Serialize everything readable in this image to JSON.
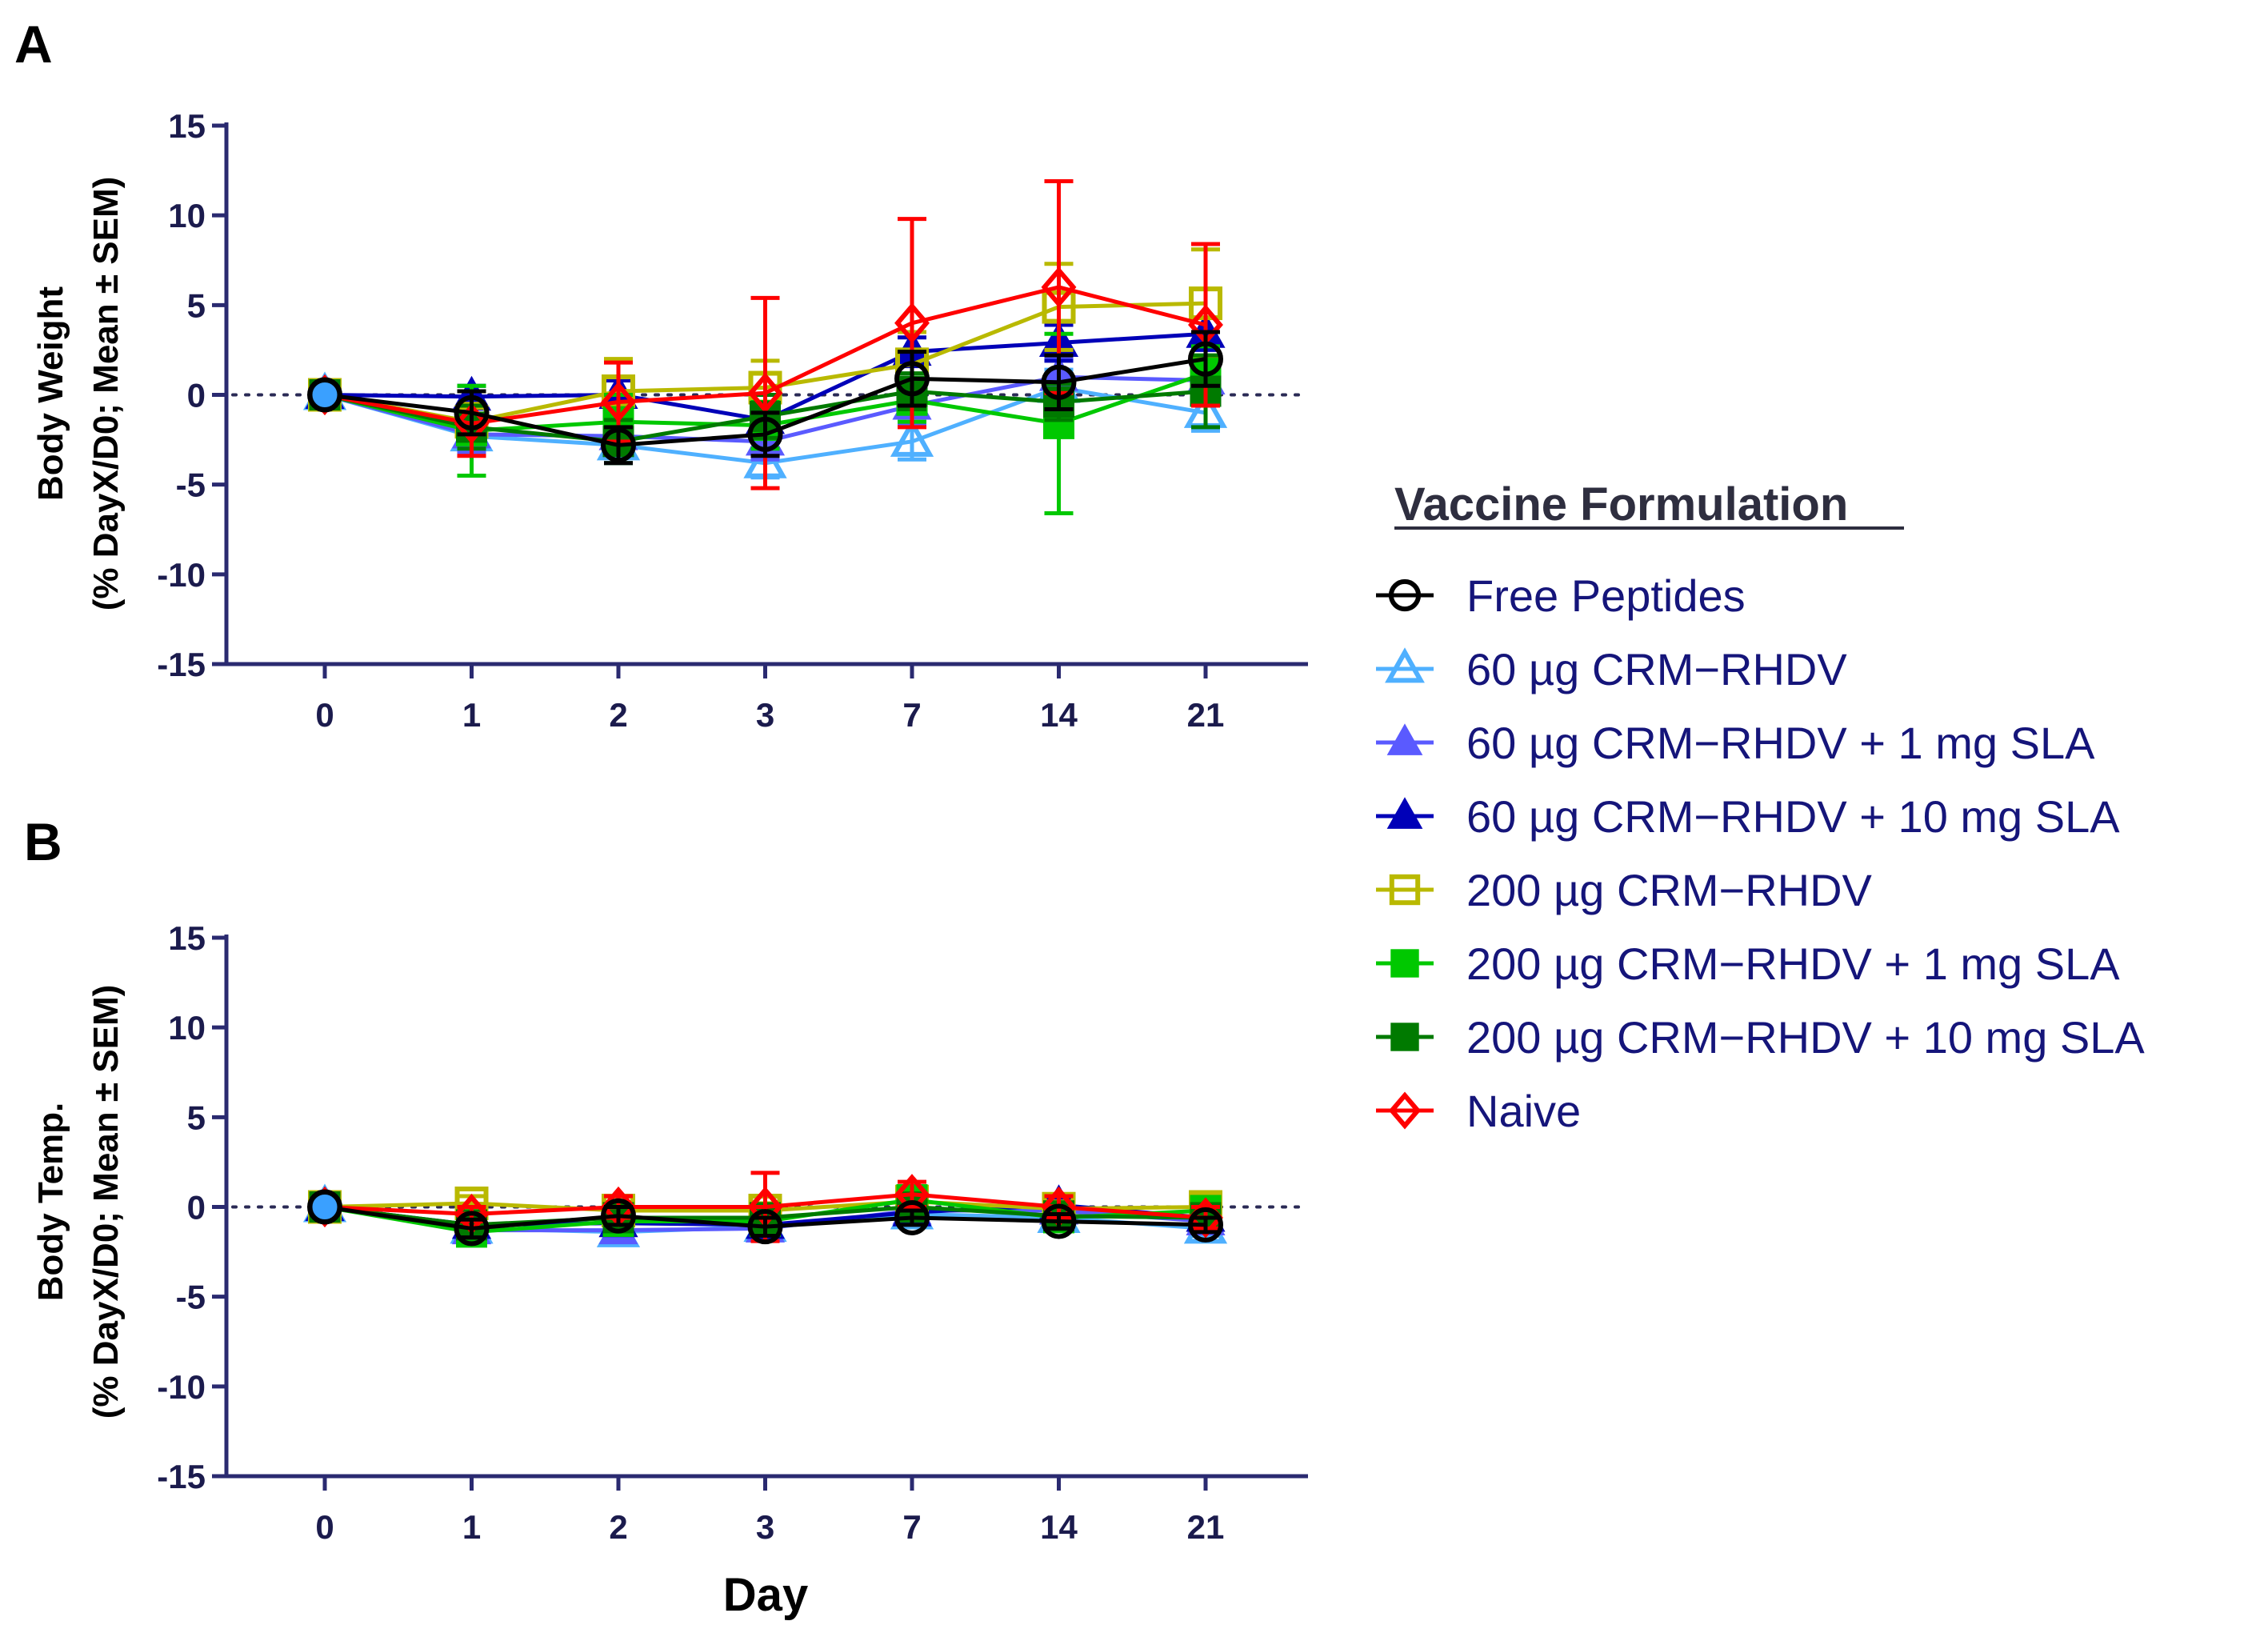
{
  "panels": {
    "A": {
      "letter": "A"
    },
    "B": {
      "letter": "B"
    }
  },
  "legend": {
    "title": "Vaccine Formulation"
  },
  "chart_data": [
    {
      "type": "line",
      "panel": "A",
      "ylabel_line1": "Body Weight",
      "ylabel_line2": "(% DayX/D0; Mean ± SEM)",
      "xlabel": "",
      "categories": [
        "0",
        "1",
        "2",
        "3",
        "7",
        "14",
        "21"
      ],
      "ylim": [
        -15,
        15
      ],
      "yticks": [
        15,
        10,
        5,
        0,
        -5,
        -10,
        -15
      ],
      "reference_line": 0,
      "series": [
        {
          "name": "Free Peptides",
          "color": "#000000",
          "marker": "circle-open",
          "values": [
            0,
            -1.0,
            -2.8,
            -2.2,
            0.9,
            0.7,
            2.0
          ],
          "err": [
            0,
            1.2,
            1.0,
            1.2,
            1.5,
            1.5,
            1.5
          ]
        },
        {
          "name": "60 µg CRM−RHDV",
          "color": "#4fb0ff",
          "marker": "triangle-open",
          "values": [
            0,
            -2.3,
            -2.8,
            -3.8,
            -2.6,
            0.4,
            -1.0
          ],
          "err": [
            0,
            1.0,
            1.0,
            0.8,
            1.0,
            1.0,
            1.0
          ]
        },
        {
          "name": "60 µg CRM−RHDV + 1 mg SLA",
          "color": "#5a5aff",
          "marker": "triangle-filled",
          "values": [
            0,
            -2.2,
            -2.3,
            -2.6,
            -0.6,
            1.0,
            0.8
          ],
          "err": [
            0,
            1.0,
            1.0,
            1.0,
            1.0,
            1.0,
            1.0
          ]
        },
        {
          "name": "60 µg CRM−RHDV + 10 mg SLA",
          "color": "#0000b8",
          "marker": "triangle-filled",
          "values": [
            0,
            -0.1,
            0.0,
            -1.4,
            2.4,
            2.9,
            3.4
          ],
          "err": [
            0,
            0.6,
            0.8,
            1.0,
            0.8,
            1.0,
            0.9
          ]
        },
        {
          "name": "200 µg CRM−RHDV",
          "color": "#b9b900",
          "marker": "square-open",
          "values": [
            0,
            -1.5,
            0.2,
            0.4,
            1.7,
            4.9,
            5.1
          ],
          "err": [
            0,
            1.0,
            1.8,
            1.5,
            1.8,
            2.4,
            3.0
          ]
        },
        {
          "name": "200 µg CRM−RHDV + 1 mg SLA",
          "color": "#00c800",
          "marker": "square-filled",
          "values": [
            0,
            -2.0,
            -1.5,
            -1.7,
            -0.3,
            -1.6,
            1.2
          ],
          "err": [
            0,
            2.5,
            1.5,
            1.3,
            1.2,
            5.0,
            1.5
          ]
        },
        {
          "name": "200 µg CRM−RHDV + 10 mg SLA",
          "color": "#007a00",
          "marker": "square-filled",
          "values": [
            0,
            -1.8,
            -2.6,
            -1.2,
            0.2,
            -0.4,
            0.2
          ],
          "err": [
            0,
            1.2,
            1.2,
            1.2,
            1.0,
            1.0,
            2.0
          ]
        },
        {
          "name": "Naive",
          "color": "#ff0000",
          "marker": "diamond-open",
          "values": [
            0,
            -1.6,
            -0.4,
            0.1,
            4.0,
            6.0,
            3.9
          ],
          "err": [
            0,
            1.8,
            2.2,
            5.3,
            5.8,
            5.9,
            4.5
          ]
        }
      ]
    },
    {
      "type": "line",
      "panel": "B",
      "ylabel_line1": "Body Temp.",
      "ylabel_line2": "(% DayX/D0; Mean ± SEM)",
      "xlabel": "Day",
      "categories": [
        "0",
        "1",
        "2",
        "3",
        "7",
        "14",
        "21"
      ],
      "ylim": [
        -15,
        15
      ],
      "yticks": [
        15,
        10,
        5,
        0,
        -5,
        -10,
        -15
      ],
      "reference_line": 0,
      "series": [
        {
          "name": "Free Peptides",
          "color": "#000000",
          "marker": "circle-open",
          "values": [
            0,
            -1.2,
            -0.5,
            -1.1,
            -0.6,
            -0.8,
            -1.0
          ],
          "err": [
            0,
            0.5,
            0.5,
            0.5,
            0.4,
            0.4,
            0.4
          ]
        },
        {
          "name": "60 µg CRM−RHDV",
          "color": "#4fb0ff",
          "marker": "triangle-open",
          "values": [
            0,
            -1.2,
            -1.4,
            -1.1,
            -0.4,
            -0.6,
            -1.2
          ],
          "err": [
            0,
            0.4,
            0.4,
            0.4,
            0.4,
            0.4,
            0.4
          ]
        },
        {
          "name": "60 µg CRM−RHDV + 1 mg SLA",
          "color": "#5a5aff",
          "marker": "triangle-filled",
          "values": [
            0,
            -1.3,
            -1.3,
            -1.2,
            -0.2,
            -0.2,
            -0.8
          ],
          "err": [
            0,
            0.4,
            0.4,
            0.4,
            0.4,
            0.4,
            0.4
          ]
        },
        {
          "name": "60 µg CRM−RHDV + 10 mg SLA",
          "color": "#0000b8",
          "marker": "triangle-filled",
          "values": [
            0,
            -1.0,
            -0.9,
            -1.0,
            -0.3,
            0.1,
            -0.6
          ],
          "err": [
            0,
            0.4,
            0.4,
            0.4,
            0.4,
            0.4,
            0.4
          ]
        },
        {
          "name": "200 µg CRM−RHDV",
          "color": "#b9b900",
          "marker": "square-open",
          "values": [
            0,
            0.2,
            -0.2,
            -0.2,
            0.3,
            -0.1,
            0.0
          ],
          "err": [
            0,
            0.4,
            0.4,
            0.4,
            0.4,
            0.4,
            0.4
          ]
        },
        {
          "name": "200 µg CRM−RHDV + 1 mg SLA",
          "color": "#00c800",
          "marker": "square-filled",
          "values": [
            0,
            -1.4,
            -0.8,
            -0.8,
            0.4,
            -0.6,
            -0.2
          ],
          "err": [
            0,
            0.5,
            0.4,
            0.4,
            0.4,
            0.4,
            0.4
          ]
        },
        {
          "name": "200 µg CRM−RHDV + 10 mg SLA",
          "color": "#007a00",
          "marker": "square-filled",
          "values": [
            0,
            -1.0,
            -0.6,
            -0.6,
            0.0,
            -0.5,
            -0.6
          ],
          "err": [
            0,
            0.4,
            0.4,
            0.4,
            0.4,
            0.4,
            0.4
          ]
        },
        {
          "name": "Naive",
          "color": "#ff0000",
          "marker": "diamond-open",
          "values": [
            0,
            -0.4,
            0.0,
            0.0,
            0.7,
            0.0,
            -0.6
          ],
          "err": [
            0,
            0.4,
            0.6,
            1.9,
            0.7,
            0.6,
            0.6
          ]
        }
      ]
    }
  ]
}
